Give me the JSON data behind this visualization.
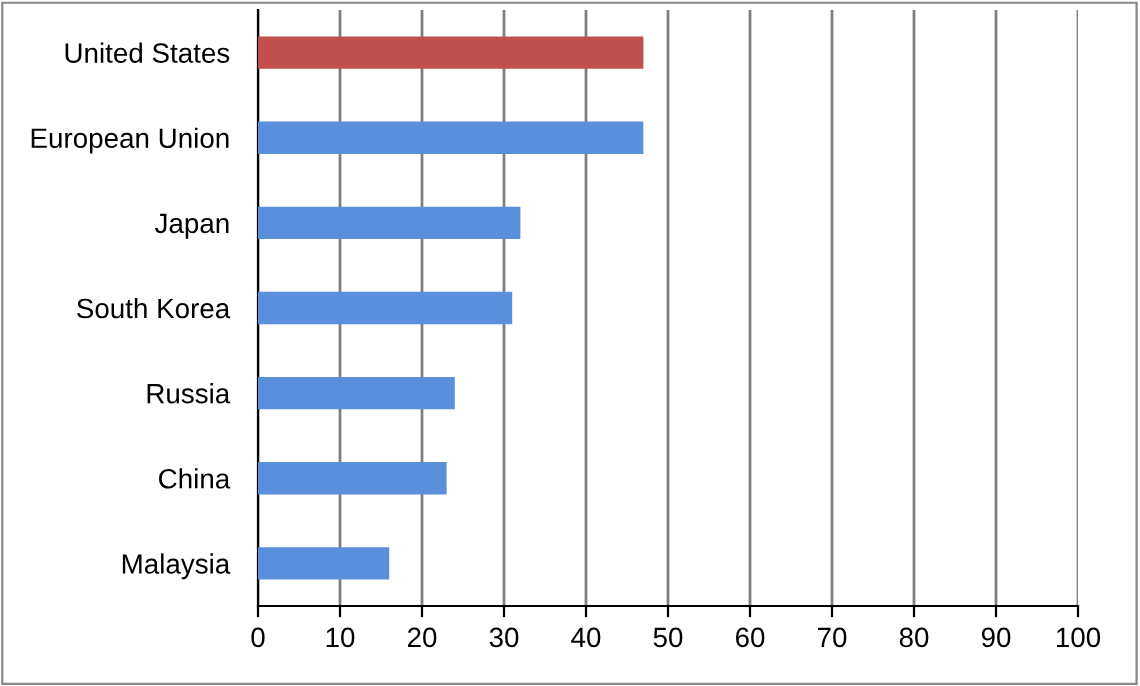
{
  "chart_data": {
    "type": "bar",
    "orientation": "horizontal",
    "categories": [
      "United States",
      "European Union",
      "Japan",
      "South Korea",
      "Russia",
      "China",
      "Malaysia"
    ],
    "values": [
      47,
      47,
      32,
      31,
      24,
      23,
      16
    ],
    "colors": [
      "#c0504d",
      "#5a8fdc",
      "#5a8fdc",
      "#5a8fdc",
      "#5a8fdc",
      "#5a8fdc",
      "#5a8fdc"
    ],
    "xlim": [
      0,
      100
    ],
    "xticks": [
      0,
      10,
      20,
      30,
      40,
      50,
      60,
      70,
      80,
      90,
      100
    ],
    "grid": "x"
  }
}
